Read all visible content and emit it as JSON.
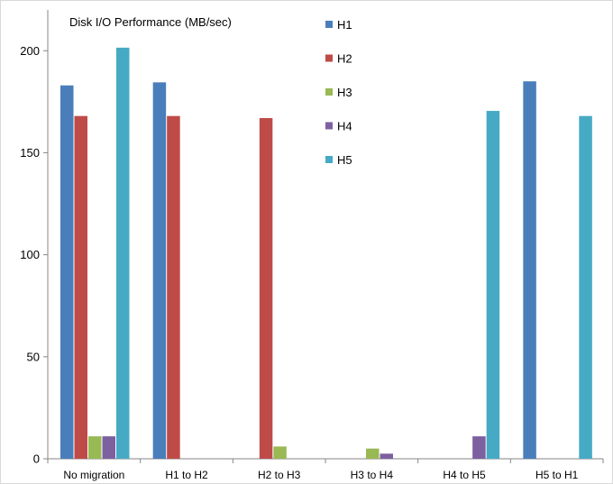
{
  "chart_data": {
    "type": "bar",
    "title": "Disk I/O Performance (MB/sec)",
    "categories": [
      "No migration",
      "H1 to H2",
      "H2 to H3",
      "H3 to H4",
      "H4 to H5",
      "H5 to H1"
    ],
    "series": [
      {
        "name": "H1",
        "color": "#4a7ebb",
        "values": [
          183,
          184.5,
          0,
          0,
          0,
          185
        ]
      },
      {
        "name": "H2",
        "color": "#be4b48",
        "values": [
          168,
          168,
          167,
          0,
          0,
          0
        ]
      },
      {
        "name": "H3",
        "color": "#98b954",
        "values": [
          11,
          0,
          6,
          5,
          0,
          0
        ]
      },
      {
        "name": "H4",
        "color": "#7d60a0",
        "values": [
          11,
          0,
          0,
          2.5,
          11,
          0
        ]
      },
      {
        "name": "H5",
        "color": "#46aac5",
        "values": [
          201.5,
          0,
          0,
          0,
          170.5,
          168
        ]
      }
    ],
    "ylim": [
      0,
      220
    ],
    "yticks": [
      "0",
      "50",
      "100",
      "150",
      "200"
    ],
    "ytick_values": [
      0,
      50,
      100,
      150,
      200
    ],
    "xlabel": "",
    "ylabel": "",
    "grid": false,
    "legend_position": "top-center"
  }
}
